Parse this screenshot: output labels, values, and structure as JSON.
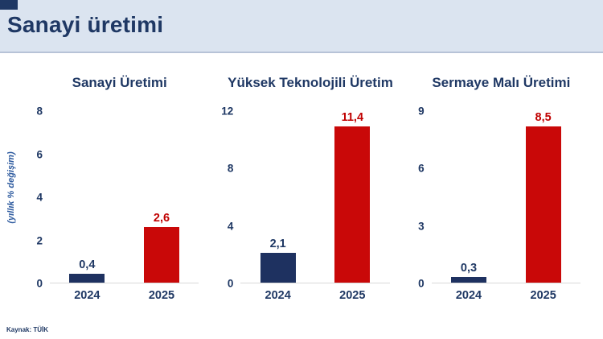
{
  "header": {
    "title": "Sanayi üretimi"
  },
  "footer": {
    "source": "Kaynak: TÜİK"
  },
  "shared_ylabel": "(yıllık % değişim)",
  "colors": {
    "header_bg": "#dbe4f0",
    "navy_text": "#1f3864",
    "navy_bar": "#1e3160",
    "red_bar": "#c90808",
    "red_text": "#c00000",
    "baseline": "#d9d9d9",
    "ylabel_blue": "#2e5b9f"
  },
  "chart_data": [
    {
      "type": "bar",
      "title": "Sanayi Üretimi",
      "categories": [
        "2024",
        "2025"
      ],
      "values": [
        0.4,
        2.6
      ],
      "value_labels": [
        "0,4",
        "2,6"
      ],
      "yticks": [
        0,
        2,
        4,
        6,
        8
      ],
      "ylim": [
        0,
        8
      ],
      "ylabel": "(yıllık % değişim)",
      "grid": false,
      "legend": "none",
      "bar_colors": [
        "#1e3160",
        "#c90808"
      ],
      "label_colors": [
        "#1f3864",
        "#c00000"
      ]
    },
    {
      "type": "bar",
      "title": "Yüksek Teknolojili Üretim",
      "categories": [
        "2024",
        "2025"
      ],
      "values": [
        2.1,
        11.4
      ],
      "value_labels": [
        "2,1",
        "11,4"
      ],
      "yticks": [
        0,
        4,
        8,
        12
      ],
      "ylim": [
        0,
        12
      ],
      "ylabel": "(yıllık % değişim)",
      "grid": false,
      "legend": "none",
      "bar_colors": [
        "#1e3160",
        "#c90808"
      ],
      "label_colors": [
        "#1f3864",
        "#c00000"
      ]
    },
    {
      "type": "bar",
      "title": "Sermaye Malı Üretimi",
      "categories": [
        "2024",
        "2025"
      ],
      "values": [
        0.3,
        8.5
      ],
      "value_labels": [
        "0,3",
        "8,5"
      ],
      "yticks": [
        0,
        3,
        6,
        9
      ],
      "ylim": [
        0,
        9
      ],
      "ylabel": "(yıllık % değişim)",
      "grid": false,
      "legend": "none",
      "bar_colors": [
        "#1e3160",
        "#c90808"
      ],
      "label_colors": [
        "#1f3864",
        "#c00000"
      ]
    }
  ]
}
